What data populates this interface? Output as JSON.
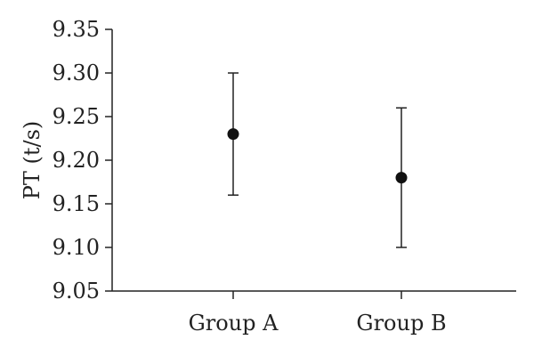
{
  "chart_data": {
    "type": "scatter",
    "title": "",
    "xlabel": "",
    "ylabel": "PT (t/s)",
    "ylim": [
      9.05,
      9.35
    ],
    "yticks": [
      "9.05",
      "9.10",
      "9.15",
      "9.20",
      "9.25",
      "9.30",
      "9.35"
    ],
    "categories": [
      "Group A",
      "Group B"
    ],
    "points": [
      {
        "category": "Group A",
        "mean": 9.23,
        "lower": 9.16,
        "upper": 9.3
      },
      {
        "category": "Group B",
        "mean": 9.18,
        "lower": 9.1,
        "upper": 9.26
      }
    ],
    "grid": false,
    "legend": "none",
    "colors": {
      "marks": "#111111",
      "axes": "#222222"
    }
  }
}
